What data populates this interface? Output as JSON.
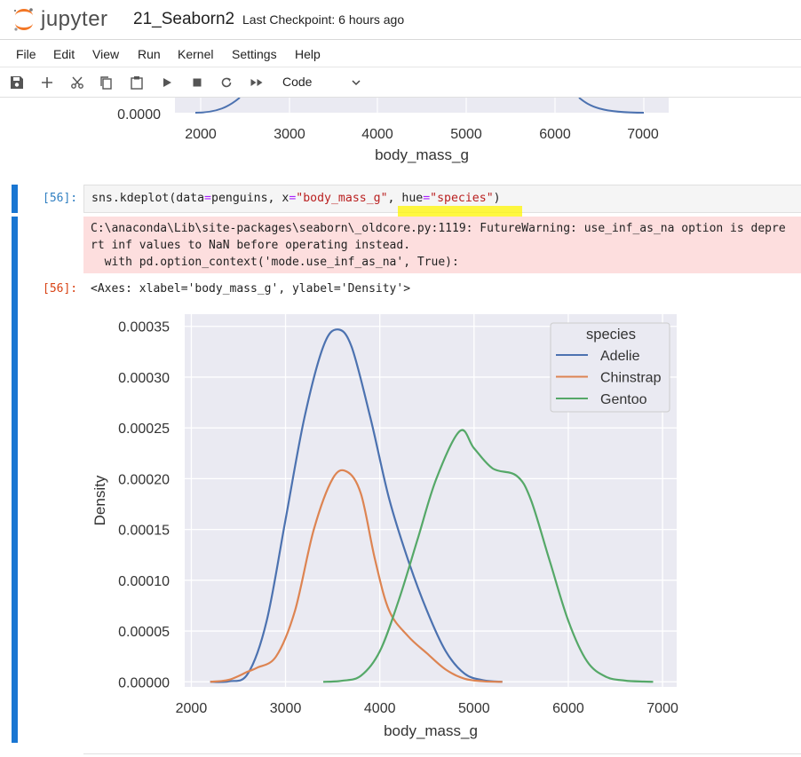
{
  "app": {
    "logo_text": "jupyter",
    "notebook_title": "21_Seaborn2",
    "checkpoint": "Last Checkpoint: 6 hours ago"
  },
  "menu": [
    "File",
    "Edit",
    "View",
    "Run",
    "Kernel",
    "Settings",
    "Help"
  ],
  "toolbar": {
    "icons": [
      "save-icon",
      "add-cell-icon",
      "cut-icon",
      "copy-icon",
      "paste-icon",
      "run-icon",
      "stop-icon",
      "restart-icon",
      "fast-forward-icon"
    ],
    "cell_type": "Code"
  },
  "previous_output": {
    "y_tick": "0.0000",
    "x_ticks": [
      "2000",
      "3000",
      "4000",
      "5000",
      "6000",
      "7000"
    ],
    "xlabel": "body_mass_g"
  },
  "cell": {
    "in_prompt": "[56]:",
    "code": {
      "a": "sns.kdeplot(data",
      "b": "=",
      "c": "penguins, x",
      "d": "=",
      "e": "\"body_mass_g\"",
      "f": ", hue",
      "g": "=",
      "h": "\"species\"",
      "i": ")"
    },
    "stderr": [
      "C:\\anaconda\\Lib\\site-packages\\seaborn\\_oldcore.py:1119: FutureWarning: use_inf_as_na option is depre",
      "rt inf values to NaN before operating instead.",
      "  with pd.option_context('mode.use_inf_as_na', True):"
    ],
    "out_prompt": "[56]:",
    "out_text": "<Axes: xlabel='body_mass_g', ylabel='Density'>"
  },
  "colors": {
    "Adelie": "#4c72b0",
    "Chinstrap": "#dd8452",
    "Gentoo": "#55a868",
    "plot_bg": "#eaeaf2"
  },
  "chart_data": {
    "type": "line",
    "xlabel": "body_mass_g",
    "ylabel": "Density",
    "xlim": [
      1930,
      7150
    ],
    "ylim": [
      -5e-06,
      0.000362
    ],
    "x_ticks": [
      2000,
      3000,
      4000,
      5000,
      6000,
      7000
    ],
    "y_ticks": [
      0,
      5e-05,
      0.0001,
      0.00015,
      0.0002,
      0.00025,
      0.0003,
      0.00035
    ],
    "y_tick_labels": [
      "0.00000",
      "0.00005",
      "0.00010",
      "0.00015",
      "0.00020",
      "0.00025",
      "0.00030",
      "0.00035"
    ],
    "grid": true,
    "legend": {
      "title": "species",
      "placement": "top-right"
    },
    "series": [
      {
        "name": "Adelie",
        "x": [
          2200,
          2400,
          2600,
          2800,
          3000,
          3200,
          3400,
          3550,
          3700,
          3900,
          4100,
          4300,
          4500,
          4700,
          4900,
          5100,
          5300
        ],
        "y": [
          0.0,
          5e-07,
          8e-06,
          6e-05,
          0.00016,
          0.00026,
          0.00033,
          0.000347,
          0.00033,
          0.00026,
          0.00018,
          0.00012,
          7e-05,
          3e-05,
          8e-06,
          1.5e-06,
          0.0
        ]
      },
      {
        "name": "Chinstrap",
        "x": [
          2200,
          2400,
          2600,
          2700,
          2900,
          3100,
          3300,
          3500,
          3650,
          3800,
          3950,
          4100,
          4300,
          4500,
          4700,
          4900,
          5100,
          5300
        ],
        "y": [
          0.0,
          2e-06,
          1e-05,
          1.4e-05,
          2.5e-05,
          7e-05,
          0.00015,
          0.0002,
          0.000207,
          0.000185,
          0.00012,
          7e-05,
          4.5e-05,
          2.8e-05,
          1.2e-05,
          3e-06,
          5e-07,
          0.0
        ]
      },
      {
        "name": "Gentoo",
        "x": [
          3400,
          3600,
          3800,
          4000,
          4200,
          4400,
          4600,
          4850,
          5000,
          5200,
          5450,
          5600,
          5800,
          6000,
          6200,
          6400,
          6600,
          6800,
          6900
        ],
        "y": [
          0.0,
          1e-06,
          6e-06,
          3e-05,
          8e-05,
          0.00014,
          0.0002,
          0.000247,
          0.00023,
          0.00021,
          0.000203,
          0.00018,
          0.00012,
          6e-05,
          2e-05,
          5e-06,
          1.2e-06,
          2e-07,
          0.0
        ]
      }
    ]
  }
}
